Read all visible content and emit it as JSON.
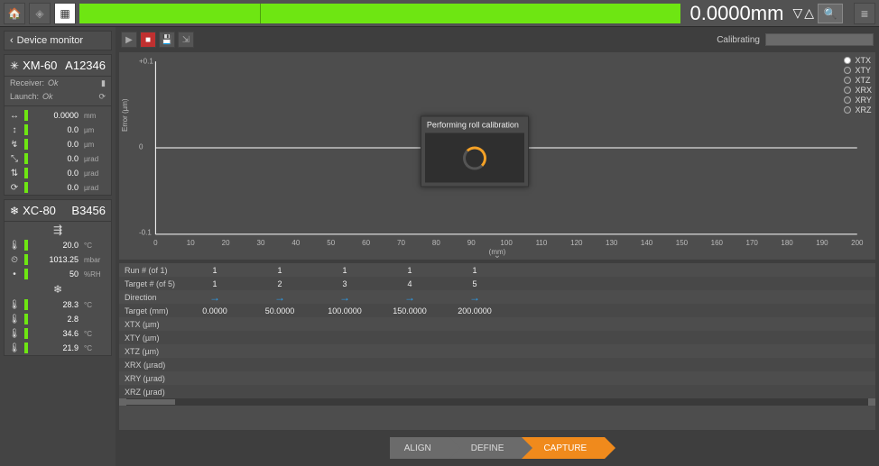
{
  "topbar": {
    "readout": "0.0000mm",
    "axis_bar_color": "#6ee612"
  },
  "sidebar": {
    "title": "Device monitor",
    "devices": [
      {
        "name": "XM-60",
        "serial": "A12346",
        "status": [
          {
            "label": "Receiver:",
            "value": "Ok"
          },
          {
            "label": "Launch:",
            "value": "Ok"
          }
        ],
        "readings": [
          {
            "icon": "↔",
            "value": "0.0000",
            "unit": "mm"
          },
          {
            "icon": "↕",
            "value": "0.0",
            "unit": "µm"
          },
          {
            "icon": "↯",
            "value": "0.0",
            "unit": "µm"
          },
          {
            "icon": "⤡",
            "value": "0.0",
            "unit": "µrad"
          },
          {
            "icon": "⇅",
            "value": "0.0",
            "unit": "µrad"
          },
          {
            "icon": "⟳",
            "value": "0.0",
            "unit": "µrad"
          }
        ]
      },
      {
        "name": "XC-80",
        "serial": "B3456",
        "center_icon": "⇶",
        "readings": [
          {
            "icon": "🌡",
            "value": "20.0",
            "unit": "°C"
          },
          {
            "icon": "⏲",
            "value": "1013.25",
            "unit": "mbar"
          },
          {
            "icon": "•",
            "value": "50",
            "unit": "%RH"
          }
        ],
        "center_icon2": "❄",
        "readings2": [
          {
            "icon": "🌡",
            "value": "28.3",
            "unit": "°C"
          },
          {
            "icon": "🌡",
            "value": "2.8",
            "unit": ""
          },
          {
            "icon": "🌡",
            "value": "34.6",
            "unit": "°C"
          },
          {
            "icon": "🌡",
            "value": "21.9",
            "unit": "°C"
          }
        ]
      }
    ]
  },
  "chart": {
    "calibrating_label": "Calibrating",
    "ylabel": "Error (µm)",
    "xlabel": "(mm)",
    "ylim": [
      -0.1,
      0.1
    ],
    "yticks": [
      {
        "v": 0.1,
        "l": "+0.1"
      },
      {
        "v": 0,
        "l": "0"
      },
      {
        "v": -0.1,
        "l": "-0.1"
      }
    ],
    "xlim": [
      0,
      200
    ],
    "xticks": [
      0,
      10,
      20,
      30,
      40,
      50,
      60,
      70,
      80,
      90,
      100,
      110,
      120,
      130,
      140,
      150,
      160,
      170,
      180,
      190,
      200
    ],
    "legend": [
      "XTX",
      "XTY",
      "XTZ",
      "XRX",
      "XRY",
      "XRZ"
    ],
    "selected_legend": 0,
    "axis_color": "#ffffff",
    "grid_color": "#6a6a6a",
    "bg": "#4d4d4d"
  },
  "popup": {
    "title": "Performing roll calibration"
  },
  "grid": {
    "rows": [
      {
        "label": "Run # (of 1)",
        "cells": [
          "1",
          "1",
          "1",
          "1",
          "1"
        ]
      },
      {
        "label": "Target # (of 5)",
        "cells": [
          "1",
          "2",
          "3",
          "4",
          "5"
        ]
      },
      {
        "label": "Direction",
        "cells": [
          "→",
          "→",
          "→",
          "→",
          "→"
        ],
        "arrow": true
      },
      {
        "label": "Target (mm)",
        "cells": [
          "0.0000",
          "50.0000",
          "100.0000",
          "150.0000",
          "200.0000"
        ]
      },
      {
        "label": "XTX (µm)",
        "cells": [
          "",
          "",
          "",
          "",
          ""
        ]
      },
      {
        "label": "XTY (µm)",
        "cells": [
          "",
          "",
          "",
          "",
          ""
        ]
      },
      {
        "label": "XTZ (µm)",
        "cells": [
          "",
          "",
          "",
          "",
          ""
        ]
      },
      {
        "label": "XRX (µrad)",
        "cells": [
          "",
          "",
          "",
          "",
          ""
        ]
      },
      {
        "label": "XRY (µrad)",
        "cells": [
          "",
          "",
          "",
          "",
          ""
        ]
      },
      {
        "label": "XRZ (µrad)",
        "cells": [
          "",
          "",
          "",
          "",
          ""
        ]
      }
    ]
  },
  "footer": {
    "steps": [
      "ALIGN",
      "DEFINE",
      "CAPTURE"
    ],
    "active_index": 2
  }
}
